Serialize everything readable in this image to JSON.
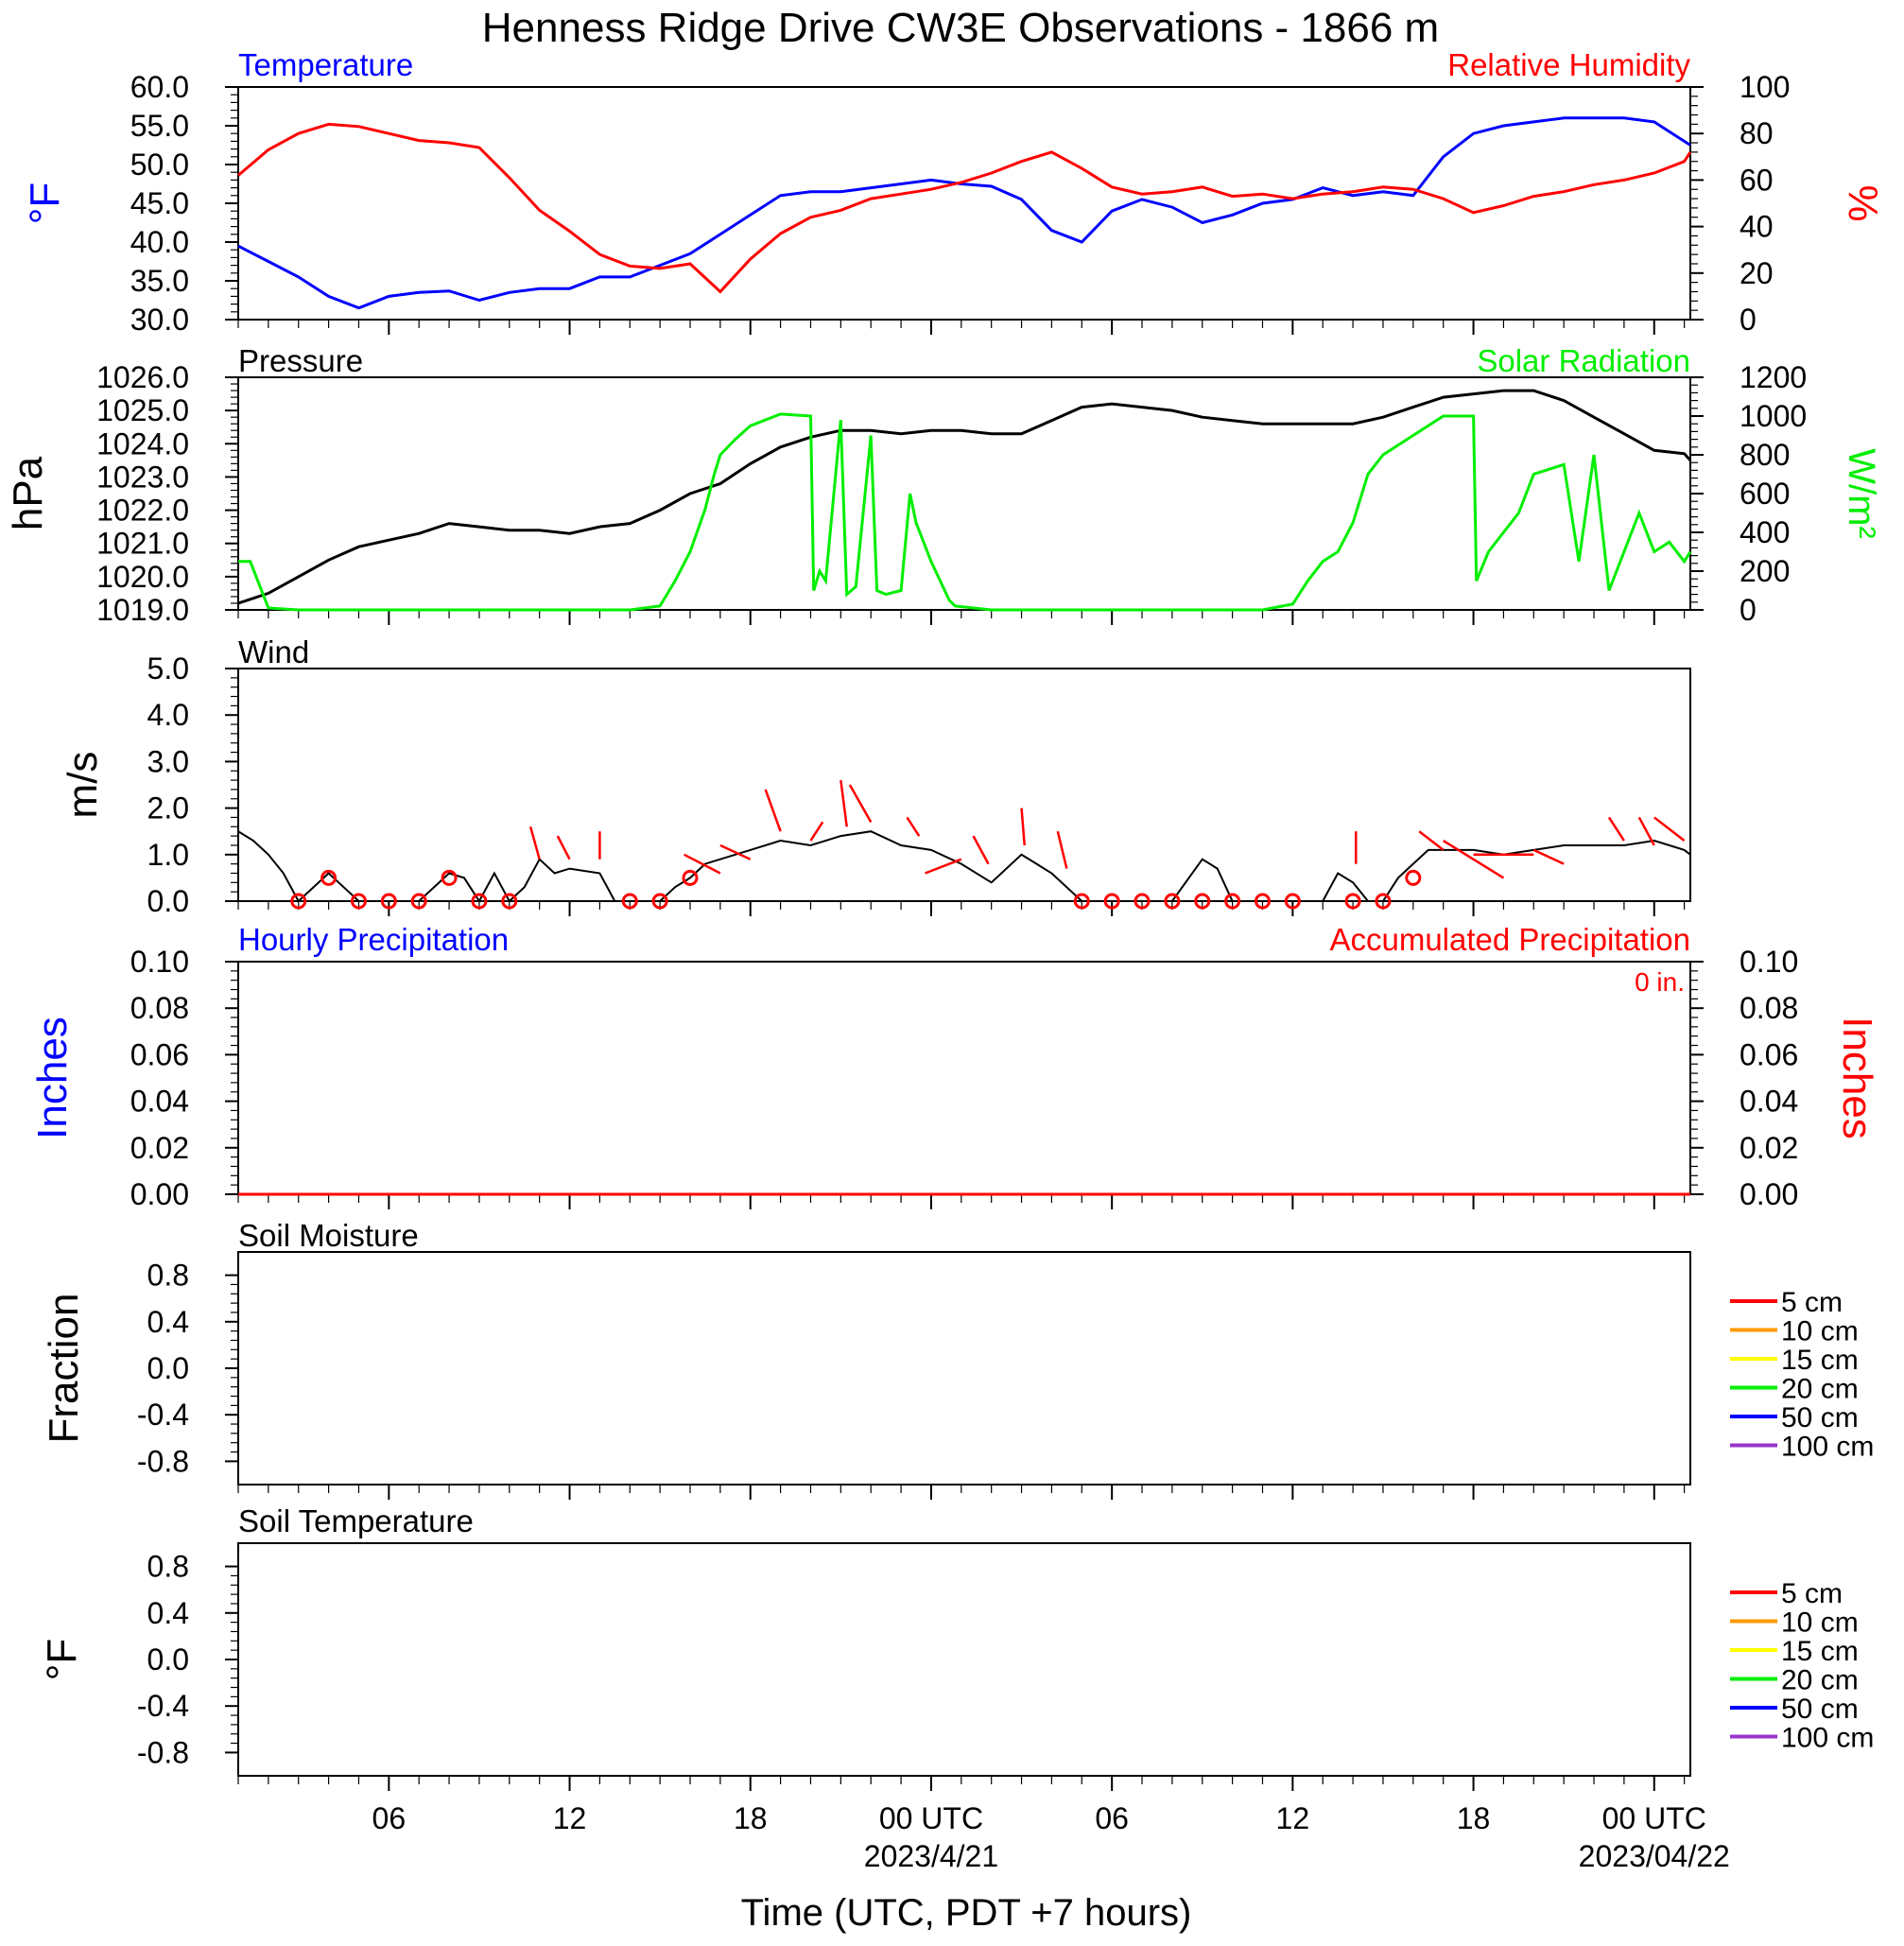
{
  "title": "Henness Ridge Drive CW3E Observations - 1866 m",
  "colors": {
    "temperature": "#0000ff",
    "humidity": "#ff0000",
    "pressure": "#000000",
    "solar": "#00ee00",
    "wind": "#000000",
    "barb": "#ff0000",
    "hourly_precip": "#0000ff",
    "accum_precip": "#ff0000"
  },
  "chart_data": [
    {
      "id": "temp_rh",
      "type": "line",
      "left_title": "Temperature",
      "right_title": "Relative Humidity",
      "ylabel": "°F",
      "ylabel_right": "%",
      "ylim": [
        30,
        60
      ],
      "ylim_right": [
        0,
        100
      ],
      "yticks": [
        "30.0",
        "35.0",
        "40.0",
        "45.0",
        "50.0",
        "55.0",
        "60.0"
      ],
      "yticks_right": [
        "0",
        "20",
        "40",
        "60",
        "80",
        "100"
      ],
      "x_hours": [
        1,
        2,
        3,
        4,
        5,
        6,
        7,
        8,
        9,
        10,
        11,
        12,
        13,
        14,
        15,
        16,
        17,
        18,
        19,
        20,
        21,
        22,
        23,
        24,
        25,
        26,
        27,
        28,
        29,
        30,
        31,
        32,
        33,
        34,
        35,
        36,
        37,
        38,
        39,
        40,
        41,
        42,
        43,
        44,
        45,
        46,
        47,
        48,
        49,
        49.2
      ],
      "series": [
        {
          "name": "Temperature",
          "axis": "left",
          "values": [
            39.5,
            37.5,
            35.5,
            33.0,
            31.5,
            33.0,
            33.5,
            33.7,
            32.5,
            33.5,
            34.0,
            34.0,
            35.5,
            35.5,
            37.0,
            38.5,
            41.0,
            43.5,
            46.0,
            46.5,
            46.5,
            47.0,
            47.5,
            48.0,
            47.5,
            47.2,
            45.5,
            41.5,
            40.0,
            44.0,
            45.5,
            44.5,
            42.5,
            43.5,
            45.0,
            45.5,
            47.0,
            46.0,
            46.5,
            46.0,
            51.0,
            54.0,
            55.0,
            55.5,
            56.0,
            56.0,
            56.0,
            55.5,
            53.0,
            52.5
          ]
        },
        {
          "name": "Relative Humidity",
          "axis": "right",
          "values": [
            62,
            73,
            80,
            84,
            83,
            80,
            77,
            76,
            74,
            61,
            47,
            38,
            28,
            23,
            22,
            24,
            12,
            26,
            37,
            44,
            47,
            52,
            54,
            56,
            59,
            63,
            68,
            72,
            65,
            57,
            54,
            55,
            57,
            53,
            54,
            52,
            54,
            55,
            57,
            56,
            52,
            46,
            49,
            53,
            55,
            58,
            60,
            63,
            68,
            72
          ]
        }
      ]
    },
    {
      "id": "pressure_solar",
      "type": "line",
      "left_title": "Pressure",
      "right_title": "Solar Radiation",
      "ylabel": "hPa",
      "ylabel_right": "W/m²",
      "ylim": [
        1019,
        1026
      ],
      "ylim_right": [
        0,
        1200
      ],
      "yticks": [
        "1019.0",
        "1020.0",
        "1021.0",
        "1022.0",
        "1023.0",
        "1024.0",
        "1025.0",
        "1026.0"
      ],
      "yticks_right": [
        "0",
        "200",
        "400",
        "600",
        "800",
        "1000",
        "1200"
      ],
      "series": [
        {
          "name": "Pressure",
          "axis": "left",
          "x_hours": [
            1,
            2,
            3,
            4,
            5,
            6,
            7,
            8,
            9,
            10,
            11,
            12,
            13,
            14,
            15,
            16,
            17,
            18,
            19,
            20,
            21,
            22,
            23,
            24,
            25,
            26,
            27,
            28,
            29,
            30,
            31,
            32,
            33,
            34,
            35,
            36,
            37,
            38,
            39,
            40,
            41,
            42,
            43,
            44,
            45,
            46,
            47,
            48,
            49,
            49.2
          ],
          "values": [
            1019.2,
            1019.5,
            1020.0,
            1020.5,
            1020.9,
            1021.1,
            1021.3,
            1021.6,
            1021.5,
            1021.4,
            1021.4,
            1021.3,
            1021.5,
            1021.6,
            1022.0,
            1022.5,
            1022.8,
            1023.4,
            1023.9,
            1024.2,
            1024.4,
            1024.4,
            1024.3,
            1024.4,
            1024.4,
            1024.3,
            1024.3,
            1024.7,
            1025.1,
            1025.2,
            1025.1,
            1025.0,
            1024.8,
            1024.7,
            1024.6,
            1024.6,
            1024.6,
            1024.6,
            1024.8,
            1025.1,
            1025.4,
            1025.5,
            1025.6,
            1025.6,
            1025.3,
            1024.8,
            1024.3,
            1023.8,
            1023.7,
            1023.5
          ]
        },
        {
          "name": "Solar Radiation",
          "axis": "right",
          "x_hours": [
            1,
            1.4,
            2,
            3,
            14,
            15,
            15.5,
            16,
            16.5,
            16.8,
            17,
            17.5,
            18,
            19,
            20,
            20.1,
            20.3,
            20.5,
            21,
            21.2,
            21.5,
            22,
            22.2,
            22.5,
            23,
            23.3,
            23.5,
            24,
            24.6,
            24.8,
            26,
            35,
            36,
            36.5,
            37,
            37.5,
            38,
            38.5,
            39,
            40,
            41,
            42,
            42.1,
            42.5,
            43,
            43.5,
            44,
            45,
            45.5,
            46,
            46.5,
            47,
            47.5,
            48,
            48.5,
            49,
            49.2
          ],
          "values": [
            250,
            250,
            10,
            0,
            0,
            20,
            150,
            300,
            520,
            700,
            800,
            880,
            950,
            1010,
            1000,
            100,
            200,
            150,
            980,
            80,
            120,
            900,
            100,
            80,
            100,
            600,
            450,
            250,
            50,
            20,
            0,
            0,
            30,
            150,
            250,
            300,
            450,
            700,
            800,
            900,
            1000,
            1000,
            150,
            300,
            400,
            500,
            700,
            750,
            250,
            800,
            100,
            300,
            500,
            300,
            350,
            250,
            300
          ]
        }
      ]
    },
    {
      "id": "wind",
      "type": "line",
      "left_title": "Wind",
      "ylabel": "m/s",
      "ylim": [
        0,
        5
      ],
      "yticks": [
        "0.0",
        "1.0",
        "2.0",
        "3.0",
        "4.0",
        "5.0"
      ],
      "x_hours": [
        1,
        1.5,
        2,
        2.5,
        3,
        4,
        4.5,
        5,
        6,
        7,
        8,
        8.5,
        9,
        9.5,
        10,
        10.5,
        11,
        11.5,
        12,
        13,
        13.5,
        14,
        15,
        15.5,
        16,
        16.5,
        17,
        18,
        19,
        20,
        21,
        22,
        23,
        24,
        25,
        26,
        27,
        27.5,
        28,
        29,
        29.5,
        30,
        31,
        32,
        33,
        33.5,
        34,
        35,
        36,
        37,
        37.5,
        38,
        38.5,
        39,
        39.5,
        40,
        40.5,
        41,
        42,
        43,
        44,
        45,
        46,
        47,
        48,
        49,
        49.2
      ],
      "values": [
        1.5,
        1.3,
        1.0,
        0.6,
        0.0,
        0.6,
        0.3,
        0.0,
        0.0,
        0.0,
        0.6,
        0.5,
        0.0,
        0.6,
        0.0,
        0.3,
        0.9,
        0.6,
        0.7,
        0.6,
        0.0,
        0.0,
        0.0,
        0.3,
        0.5,
        0.8,
        0.9,
        1.1,
        1.3,
        1.2,
        1.4,
        1.5,
        1.2,
        1.1,
        0.8,
        0.4,
        1.0,
        0.8,
        0.6,
        0.0,
        0.0,
        0.0,
        0.0,
        0.0,
        0.9,
        0.7,
        0.0,
        0.0,
        0.0,
        0.0,
        0.6,
        0.4,
        0.0,
        0.0,
        0.5,
        0.8,
        1.1,
        1.1,
        1.1,
        1.0,
        1.1,
        1.2,
        1.2,
        1.2,
        1.3,
        1.1,
        1.0
      ],
      "calm_circle_hours": [
        3,
        5,
        6,
        7,
        9,
        10,
        14,
        15,
        29,
        30,
        31,
        32,
        33,
        34,
        35,
        36,
        38,
        39
      ],
      "calm_circle_with_dot_hours": [
        4,
        8,
        16,
        40
      ],
      "barb_segments": [
        {
          "x1": 10.7,
          "y1": 1.6,
          "x2": 11.0,
          "y2": 0.9
        },
        {
          "x1": 11.6,
          "y1": 1.4,
          "x2": 12.0,
          "y2": 0.9
        },
        {
          "x1": 13.0,
          "y1": 1.5,
          "x2": 13.0,
          "y2": 0.9
        },
        {
          "x1": 15.8,
          "y1": 1.0,
          "x2": 17.0,
          "y2": 0.6
        },
        {
          "x1": 17.0,
          "y1": 1.2,
          "x2": 18.0,
          "y2": 0.9
        },
        {
          "x1": 18.5,
          "y1": 2.4,
          "x2": 19.0,
          "y2": 1.5
        },
        {
          "x1": 20.0,
          "y1": 1.3,
          "x2": 20.4,
          "y2": 1.7
        },
        {
          "x1": 21.0,
          "y1": 2.6,
          "x2": 21.2,
          "y2": 1.6
        },
        {
          "x1": 21.3,
          "y1": 2.5,
          "x2": 22.0,
          "y2": 1.7
        },
        {
          "x1": 23.2,
          "y1": 1.8,
          "x2": 23.6,
          "y2": 1.4
        },
        {
          "x1": 23.8,
          "y1": 0.6,
          "x2": 25.0,
          "y2": 0.9
        },
        {
          "x1": 25.4,
          "y1": 1.4,
          "x2": 25.9,
          "y2": 0.8
        },
        {
          "x1": 27.0,
          "y1": 2.0,
          "x2": 27.1,
          "y2": 1.2
        },
        {
          "x1": 28.2,
          "y1": 1.5,
          "x2": 28.5,
          "y2": 0.7
        },
        {
          "x1": 38.1,
          "y1": 1.5,
          "x2": 38.1,
          "y2": 0.8
        },
        {
          "x1": 40.2,
          "y1": 1.5,
          "x2": 41.0,
          "y2": 1.1
        },
        {
          "x1": 41.0,
          "y1": 1.3,
          "x2": 43.0,
          "y2": 0.5
        },
        {
          "x1": 42.0,
          "y1": 1.0,
          "x2": 44.0,
          "y2": 1.0
        },
        {
          "x1": 44.0,
          "y1": 1.1,
          "x2": 45.0,
          "y2": 0.8
        },
        {
          "x1": 46.5,
          "y1": 1.8,
          "x2": 47.0,
          "y2": 1.3
        },
        {
          "x1": 47.5,
          "y1": 1.8,
          "x2": 48.0,
          "y2": 1.2
        },
        {
          "x1": 48.0,
          "y1": 1.8,
          "x2": 49.0,
          "y2": 1.3
        }
      ]
    },
    {
      "id": "precip",
      "type": "line",
      "left_title": "Hourly Precipitation",
      "right_title": "Accumulated Precipitation",
      "annotation": "0 in.",
      "ylabel": "Inches",
      "ylabel_right": "Inches",
      "ylim": [
        0,
        0.1
      ],
      "ylim_right": [
        0,
        0.1
      ],
      "yticks": [
        "0.00",
        "0.02",
        "0.04",
        "0.06",
        "0.08",
        "0.10"
      ],
      "yticks_right": [
        "0.00",
        "0.02",
        "0.04",
        "0.06",
        "0.08",
        "0.10"
      ],
      "x_hours": [
        1,
        49.2
      ],
      "series": [
        {
          "name": "Accumulated Precipitation",
          "axis": "right",
          "values": [
            0,
            0
          ]
        }
      ]
    },
    {
      "id": "soil_moisture",
      "type": "line",
      "left_title": "Soil Moisture",
      "ylabel": "Fraction",
      "ylim": [
        -1,
        1
      ],
      "yticks": [
        "-0.8",
        "-0.4",
        "0.0",
        "0.4",
        "0.8"
      ],
      "legend": [
        {
          "label": "5 cm",
          "color": "#ff0000"
        },
        {
          "label": "10 cm",
          "color": "#ff9900"
        },
        {
          "label": "15 cm",
          "color": "#ffff00"
        },
        {
          "label": "20 cm",
          "color": "#00ee00"
        },
        {
          "label": "50 cm",
          "color": "#0000ff"
        },
        {
          "label": "100 cm",
          "color": "#9933cc"
        }
      ]
    },
    {
      "id": "soil_temperature",
      "type": "line",
      "left_title": "Soil Temperature",
      "ylabel": "°F",
      "ylim": [
        -1,
        1
      ],
      "yticks": [
        "-0.8",
        "-0.4",
        "0.0",
        "0.4",
        "0.8"
      ],
      "legend": [
        {
          "label": "5 cm",
          "color": "#ff0000"
        },
        {
          "label": "10 cm",
          "color": "#ff9900"
        },
        {
          "label": "15 cm",
          "color": "#ffff00"
        },
        {
          "label": "20 cm",
          "color": "#00ee00"
        },
        {
          "label": "50 cm",
          "color": "#0000ff"
        },
        {
          "label": "100 cm",
          "color": "#9933cc"
        }
      ]
    }
  ],
  "x_axis": {
    "xlabel": "Time (UTC, PDT +7 hours)",
    "range_hours": [
      1,
      49.2
    ],
    "ticks": [
      {
        "hour": 6,
        "label": "06"
      },
      {
        "hour": 12,
        "label": "12"
      },
      {
        "hour": 18,
        "label": "18"
      },
      {
        "hour": 24,
        "label": "00 UTC",
        "sublabel": "2023/4/21"
      },
      {
        "hour": 30,
        "label": "06"
      },
      {
        "hour": 36,
        "label": "12"
      },
      {
        "hour": 42,
        "label": "18"
      },
      {
        "hour": 48,
        "label": "00 UTC",
        "sublabel": "2023/04/22"
      }
    ]
  }
}
